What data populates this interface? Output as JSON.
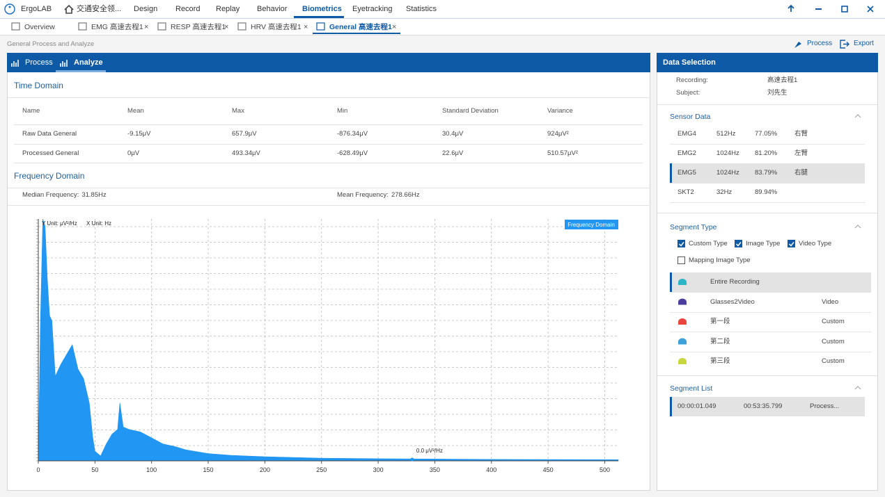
{
  "menu": {
    "app": "ErgoLAB",
    "items": [
      "交通安全领...",
      "Design",
      "Record",
      "Replay",
      "Behavior",
      "Biometrics",
      "Eyetracking",
      "Statistics"
    ],
    "active": 5
  },
  "tabs": {
    "items": [
      "Overview",
      "EMG 高速去程1",
      "RESP 高速去程1",
      "HRV 高速去程1",
      "General 高速去程1"
    ],
    "active": 4
  },
  "breadcrumb": "General Process and Analyze",
  "toolbar": [
    "Process",
    "Export"
  ],
  "left": {
    "tabs": [
      "Process",
      "Analyze"
    ],
    "time_domain": {
      "title": "Time Domain",
      "columns": [
        "Name",
        "Mean",
        "Max",
        "Min",
        "Standard Deviation",
        "Variance"
      ],
      "rows": [
        [
          "Raw Data General",
          "-9.15μV",
          "657.9μV",
          "-876.34μV",
          "30.4μV",
          "924μV²"
        ],
        [
          "Processed General",
          "0μV",
          "493.34μV",
          "-628.49μV",
          "22.6μV",
          "510.57μV²"
        ]
      ]
    },
    "frequency_domain": {
      "title": "Frequency Domain",
      "stats": [
        {
          "label": "Median Frequency:",
          "value": "31.85Hz"
        },
        {
          "label": "Mean Frequency:",
          "value": "278.66Hz"
        }
      ]
    }
  },
  "chart_data": {
    "type": "area",
    "y_unit_label": "Y Unit: μV²/Hz",
    "x_unit_label": "X Unit: Hz",
    "x": [
      0,
      2,
      4,
      6,
      8,
      10,
      12,
      15,
      20,
      25,
      30,
      35,
      40,
      45,
      48,
      50,
      55,
      60,
      65,
      70,
      72,
      75,
      80,
      90,
      100,
      110,
      120,
      130,
      150,
      170,
      200,
      250,
      300,
      400,
      512
    ],
    "series": [
      {
        "name": "Frequency Domain",
        "color": "#2196f3",
        "values": [
          0,
          60,
          100,
          97,
          75,
          60,
          58,
          35,
          40,
          44,
          48,
          38,
          34,
          24,
          10,
          4,
          2,
          7,
          11,
          13,
          24,
          14,
          13,
          12,
          9.5,
          7,
          6,
          4.6,
          3,
          2.3,
          1.7,
          1.1,
          0.9,
          0.6,
          0.5
        ]
      }
    ],
    "xlim": [
      0,
      512
    ],
    "ylim": [
      0,
      100
    ],
    "xticks": [
      0,
      50,
      100,
      150,
      200,
      250,
      300,
      350,
      400,
      450,
      500
    ],
    "grid": true,
    "annotation": {
      "text": "0.0 μV²/Hz",
      "x": 330,
      "y": 0
    }
  },
  "right": {
    "title": "Data Selection",
    "fields": [
      {
        "label": "Recording:",
        "value": "高速去程1"
      },
      {
        "label": "Subject:",
        "value": "刘先生"
      }
    ],
    "sensor_data": {
      "title": "Sensor Data",
      "rows": [
        [
          "EMG4",
          "512Hz",
          "77.05%",
          "右臂"
        ],
        [
          "EMG2",
          "1024Hz",
          "81.20%",
          "左臂"
        ],
        [
          "EMG5",
          "1024Hz",
          "83.79%",
          "右腿"
        ],
        [
          "SKT2",
          "32Hz",
          "89.94%"
        ]
      ],
      "selected": 2
    },
    "segment_type": {
      "title": "Segment Type",
      "checkboxes": [
        {
          "label": "Custom Type",
          "checked": true
        },
        {
          "label": "Image Type",
          "checked": true
        },
        {
          "label": "Video Type",
          "checked": true
        },
        {
          "label": "Mapping Image Type",
          "checked": false
        }
      ],
      "rows": [
        {
          "name": "Entire Recording",
          "color": "#2fb5c9"
        },
        {
          "name": "Glasses2Video",
          "type": "Video",
          "color": "#4a3f9e"
        },
        {
          "name": "第一段",
          "type": "Custom",
          "color": "#e8453c"
        },
        {
          "name": "第二段",
          "type": "Custom",
          "color": "#3ea0d8"
        },
        {
          "name": "第三段",
          "type": "Custom",
          "color": "#c8d640"
        }
      ],
      "selected": 0
    },
    "segment_list": {
      "title": "Segment List",
      "rows": [
        [
          "00:00:01.049",
          "00:53:35.799",
          "Process..."
        ]
      ]
    }
  }
}
